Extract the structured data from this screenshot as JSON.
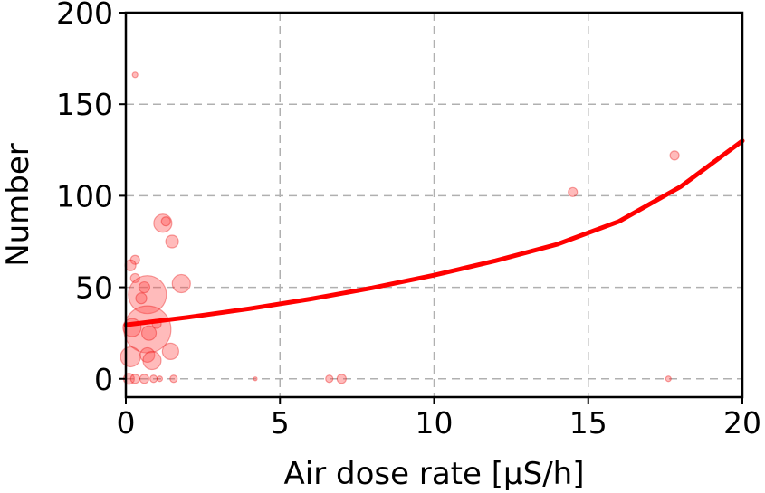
{
  "chart_data": {
    "type": "scatter",
    "title": "",
    "xlabel": "Air dose rate [μS/h]",
    "ylabel": "Number",
    "xlim": [
      0,
      20
    ],
    "ylim": [
      -10,
      200
    ],
    "xticks": [
      0,
      5,
      10,
      15,
      20
    ],
    "yticks": [
      0,
      50,
      100,
      150,
      200
    ],
    "grid": true,
    "legend": "none",
    "colors": {
      "points": "#ff4d4d",
      "points_edge": "#e60000",
      "fit": "#ff0000"
    },
    "series": [
      {
        "type": "scatter",
        "points": [
          {
            "x": 0.3,
            "y": 166,
            "r": 3
          },
          {
            "x": 0.3,
            "y": 65,
            "r": 5
          },
          {
            "x": 0.15,
            "y": 62,
            "r": 6
          },
          {
            "x": 0.3,
            "y": 55,
            "r": 5
          },
          {
            "x": 0.7,
            "y": 46,
            "r": 21
          },
          {
            "x": 0.6,
            "y": 50,
            "r": 6
          },
          {
            "x": 0.5,
            "y": 44,
            "r": 6
          },
          {
            "x": 0.7,
            "y": 27,
            "r": 26
          },
          {
            "x": 0.2,
            "y": 28,
            "r": 10
          },
          {
            "x": 0.75,
            "y": 25,
            "r": 8
          },
          {
            "x": 0.15,
            "y": 12,
            "r": 11
          },
          {
            "x": 0.7,
            "y": 13,
            "r": 8
          },
          {
            "x": 0.85,
            "y": 10,
            "r": 10
          },
          {
            "x": 1.0,
            "y": 30,
            "r": 5
          },
          {
            "x": 1.2,
            "y": 85,
            "r": 10
          },
          {
            "x": 1.3,
            "y": 86,
            "r": 5
          },
          {
            "x": 1.5,
            "y": 75,
            "r": 7
          },
          {
            "x": 1.8,
            "y": 52,
            "r": 10
          },
          {
            "x": 1.45,
            "y": 15,
            "r": 9
          },
          {
            "x": 0.1,
            "y": 0,
            "r": 6
          },
          {
            "x": 0.3,
            "y": 0,
            "r": 5
          },
          {
            "x": 0.6,
            "y": 0,
            "r": 5
          },
          {
            "x": 0.9,
            "y": 0,
            "r": 4
          },
          {
            "x": 1.1,
            "y": 0,
            "r": 3
          },
          {
            "x": 1.55,
            "y": 0,
            "r": 4
          },
          {
            "x": 4.2,
            "y": 0,
            "r": 2
          },
          {
            "x": 6.6,
            "y": 0,
            "r": 4
          },
          {
            "x": 7.0,
            "y": 0,
            "r": 5
          },
          {
            "x": 14.5,
            "y": 102,
            "r": 5
          },
          {
            "x": 17.6,
            "y": 0,
            "r": 3
          },
          {
            "x": 17.8,
            "y": 122,
            "r": 5
          }
        ]
      },
      {
        "type": "line",
        "x": [
          0,
          2,
          4,
          6,
          8,
          10,
          12,
          14,
          16,
          18,
          20
        ],
        "y": [
          29.5,
          33.6,
          38.3,
          43.6,
          49.7,
          56.6,
          64.5,
          73.5,
          86,
          105,
          130
        ]
      }
    ]
  }
}
